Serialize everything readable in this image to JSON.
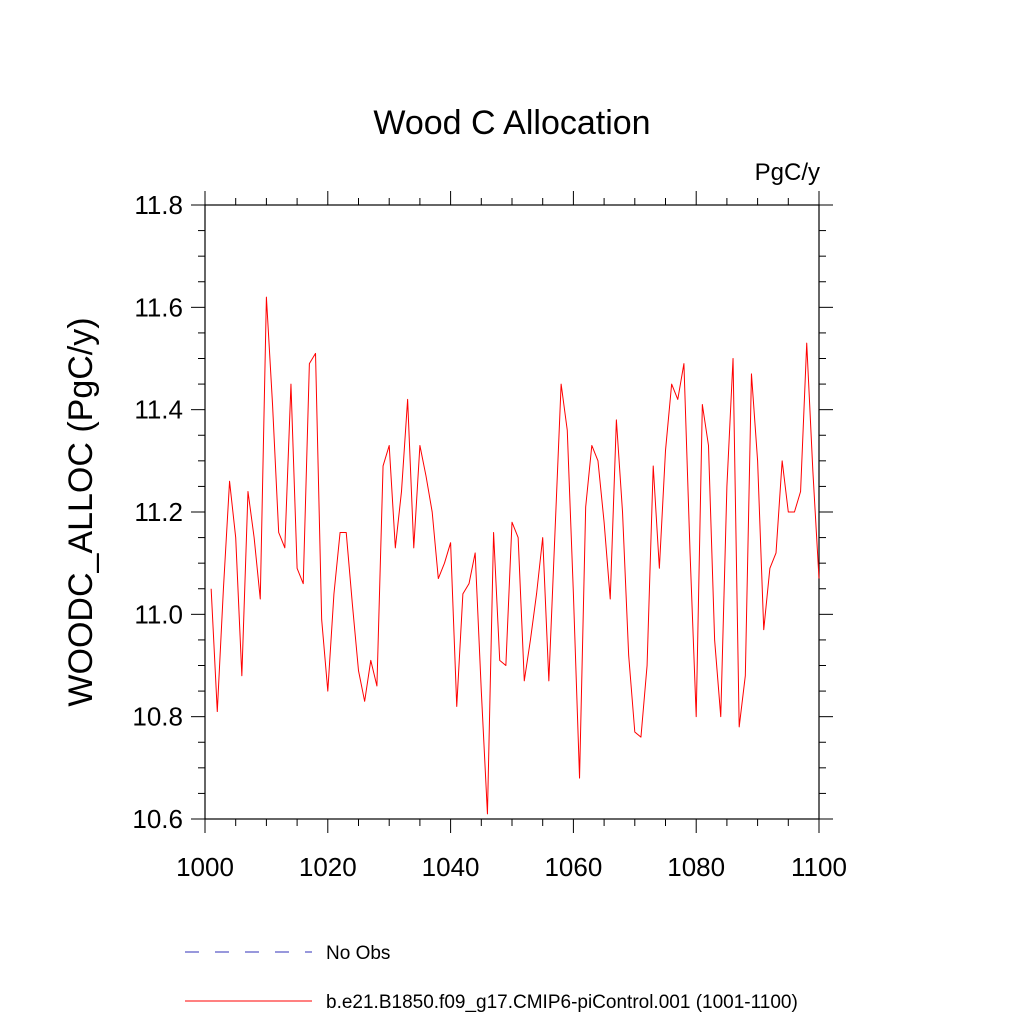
{
  "chart_data": {
    "type": "line",
    "title": "Wood C Allocation",
    "units_label": "PgC/y",
    "ylabel": "WOODC_ALLOC  (PgC/y)",
    "xlabel": "",
    "xlim": [
      1000,
      1100
    ],
    "ylim": [
      10.6,
      11.8
    ],
    "xticks": [
      1000,
      1020,
      1040,
      1060,
      1080,
      1100
    ],
    "xtick_labels": [
      "1000",
      "1020",
      "1040",
      "1060",
      "1080",
      "1100"
    ],
    "yticks": [
      10.6,
      10.8,
      11.0,
      11.2,
      11.4,
      11.6,
      11.8
    ],
    "ytick_labels": [
      "10.6",
      "10.8",
      "11.0",
      "11.2",
      "11.4",
      "11.6",
      "11.8"
    ],
    "grid": false,
    "legend_position": "bottom",
    "series": [
      {
        "name": "No Obs",
        "color": "#5a5ac8",
        "style": "dashed",
        "x": [],
        "values": []
      },
      {
        "name": "b.e21.B1850.f09_g17.CMIP6-piControl.001 (1001-1100)",
        "color": "#ff0000",
        "style": "solid",
        "x": [
          1001,
          1002,
          1003,
          1004,
          1005,
          1006,
          1007,
          1008,
          1009,
          1010,
          1011,
          1012,
          1013,
          1014,
          1015,
          1016,
          1017,
          1018,
          1019,
          1020,
          1021,
          1022,
          1023,
          1024,
          1025,
          1026,
          1027,
          1028,
          1029,
          1030,
          1031,
          1032,
          1033,
          1034,
          1035,
          1036,
          1037,
          1038,
          1039,
          1040,
          1041,
          1042,
          1043,
          1044,
          1045,
          1046,
          1047,
          1048,
          1049,
          1050,
          1051,
          1052,
          1053,
          1054,
          1055,
          1056,
          1057,
          1058,
          1059,
          1060,
          1061,
          1062,
          1063,
          1064,
          1065,
          1066,
          1067,
          1068,
          1069,
          1070,
          1071,
          1072,
          1073,
          1074,
          1075,
          1076,
          1077,
          1078,
          1079,
          1080,
          1081,
          1082,
          1083,
          1084,
          1085,
          1086,
          1087,
          1088,
          1089,
          1090,
          1091,
          1092,
          1093,
          1094,
          1095,
          1096,
          1097,
          1098,
          1099,
          1100
        ],
        "values": [
          11.05,
          10.81,
          11.05,
          11.26,
          11.15,
          10.88,
          11.24,
          11.15,
          11.03,
          11.62,
          11.41,
          11.16,
          11.13,
          11.45,
          11.09,
          11.06,
          11.49,
          11.51,
          10.99,
          10.85,
          11.04,
          11.16,
          11.16,
          11.02,
          10.89,
          10.83,
          10.91,
          10.86,
          11.29,
          11.33,
          11.13,
          11.24,
          11.42,
          11.13,
          11.33,
          11.27,
          11.2,
          11.07,
          11.1,
          11.14,
          10.82,
          11.04,
          11.06,
          11.12,
          10.85,
          10.61,
          11.16,
          10.91,
          10.9,
          11.18,
          11.15,
          10.87,
          10.95,
          11.04,
          11.15,
          10.87,
          11.16,
          11.45,
          11.36,
          11.04,
          10.68,
          11.21,
          11.33,
          11.3,
          11.18,
          11.03,
          11.38,
          11.2,
          10.92,
          10.77,
          10.76,
          10.9,
          11.29,
          11.09,
          11.32,
          11.45,
          11.42,
          11.49,
          11.12,
          10.8,
          11.41,
          11.33,
          10.95,
          10.8,
          11.25,
          11.5,
          10.78,
          10.88,
          11.47,
          11.3,
          10.97,
          11.09,
          11.12,
          11.3,
          11.2,
          11.2,
          11.24,
          11.53,
          11.28,
          11.07
        ]
      }
    ]
  }
}
